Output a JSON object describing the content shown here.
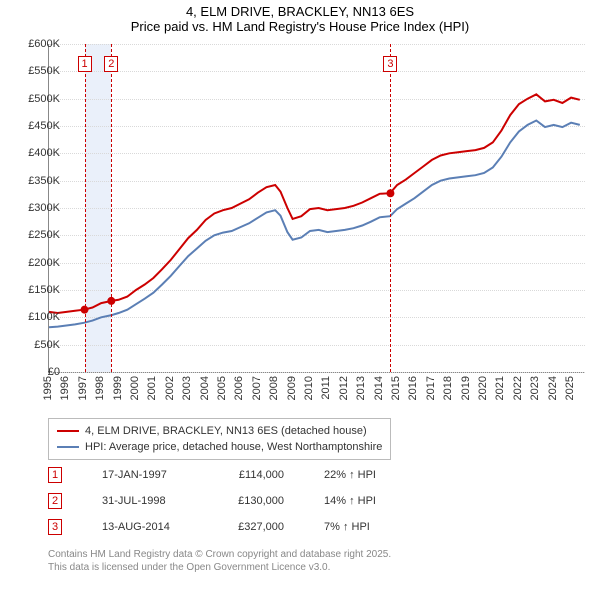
{
  "title": {
    "line1": "4, ELM DRIVE, BRACKLEY, NN13 6ES",
    "line2": "Price paid vs. HM Land Registry's House Price Index (HPI)"
  },
  "chart": {
    "type": "line",
    "x_domain": [
      1995,
      2025.8
    ],
    "y_domain": [
      0,
      600
    ],
    "y_ticks": [
      0,
      50,
      100,
      150,
      200,
      250,
      300,
      350,
      400,
      450,
      500,
      550,
      600
    ],
    "y_tick_labels": [
      "£0",
      "£50K",
      "£100K",
      "£150K",
      "£200K",
      "£250K",
      "£300K",
      "£350K",
      "£400K",
      "£450K",
      "£500K",
      "£550K",
      "£600K"
    ],
    "x_ticks": [
      1995,
      1996,
      1997,
      1998,
      1999,
      2000,
      2001,
      2002,
      2003,
      2004,
      2005,
      2006,
      2007,
      2008,
      2009,
      2010,
      2011,
      2012,
      2013,
      2014,
      2015,
      2016,
      2017,
      2018,
      2019,
      2020,
      2021,
      2022,
      2023,
      2024,
      2025
    ],
    "grid_color": "#d9d9d9",
    "background_color": "#ffffff",
    "band_color": "#eaf0fa",
    "event_line_color": "#cc0000",
    "series": [
      {
        "name": "price_paid",
        "label": "4, ELM DRIVE, BRACKLEY, NN13 6ES (detached house)",
        "color": "#cc0000",
        "width": 2,
        "data": [
          [
            1995,
            110
          ],
          [
            1995.5,
            108
          ],
          [
            1996,
            110
          ],
          [
            1996.5,
            112
          ],
          [
            1997,
            114
          ],
          [
            1997.5,
            118
          ],
          [
            1998,
            126
          ],
          [
            1998.6,
            130
          ],
          [
            1999,
            132
          ],
          [
            1999.5,
            138
          ],
          [
            2000,
            150
          ],
          [
            2000.5,
            160
          ],
          [
            2001,
            172
          ],
          [
            2001.5,
            188
          ],
          [
            2002,
            205
          ],
          [
            2002.5,
            225
          ],
          [
            2003,
            245
          ],
          [
            2003.5,
            260
          ],
          [
            2004,
            278
          ],
          [
            2004.5,
            290
          ],
          [
            2005,
            296
          ],
          [
            2005.5,
            300
          ],
          [
            2006,
            308
          ],
          [
            2006.5,
            316
          ],
          [
            2007,
            328
          ],
          [
            2007.5,
            338
          ],
          [
            2008,
            342
          ],
          [
            2008.3,
            330
          ],
          [
            2008.7,
            300
          ],
          [
            2009,
            280
          ],
          [
            2009.5,
            285
          ],
          [
            2010,
            298
          ],
          [
            2010.5,
            300
          ],
          [
            2011,
            296
          ],
          [
            2011.5,
            298
          ],
          [
            2012,
            300
          ],
          [
            2012.5,
            304
          ],
          [
            2013,
            310
          ],
          [
            2013.5,
            318
          ],
          [
            2014,
            326
          ],
          [
            2014.6,
            327
          ],
          [
            2015,
            342
          ],
          [
            2015.5,
            352
          ],
          [
            2016,
            364
          ],
          [
            2016.5,
            376
          ],
          [
            2017,
            388
          ],
          [
            2017.5,
            396
          ],
          [
            2018,
            400
          ],
          [
            2018.5,
            402
          ],
          [
            2019,
            404
          ],
          [
            2019.5,
            406
          ],
          [
            2020,
            410
          ],
          [
            2020.5,
            420
          ],
          [
            2021,
            442
          ],
          [
            2021.5,
            470
          ],
          [
            2022,
            490
          ],
          [
            2022.5,
            500
          ],
          [
            2023,
            508
          ],
          [
            2023.5,
            495
          ],
          [
            2024,
            498
          ],
          [
            2024.5,
            492
          ],
          [
            2025,
            502
          ],
          [
            2025.5,
            498
          ]
        ]
      },
      {
        "name": "hpi",
        "label": "HPI: Average price, detached house, West Northamptonshire",
        "color": "#5b7fb5",
        "width": 2,
        "data": [
          [
            1995,
            82
          ],
          [
            1995.5,
            83
          ],
          [
            1996,
            85
          ],
          [
            1996.5,
            87
          ],
          [
            1997,
            90
          ],
          [
            1997.5,
            94
          ],
          [
            1998,
            100
          ],
          [
            1998.6,
            104
          ],
          [
            1999,
            108
          ],
          [
            1999.5,
            114
          ],
          [
            2000,
            124
          ],
          [
            2000.5,
            134
          ],
          [
            2001,
            145
          ],
          [
            2001.5,
            160
          ],
          [
            2002,
            176
          ],
          [
            2002.5,
            194
          ],
          [
            2003,
            212
          ],
          [
            2003.5,
            226
          ],
          [
            2004,
            240
          ],
          [
            2004.5,
            250
          ],
          [
            2005,
            255
          ],
          [
            2005.5,
            258
          ],
          [
            2006,
            265
          ],
          [
            2006.5,
            272
          ],
          [
            2007,
            282
          ],
          [
            2007.5,
            292
          ],
          [
            2008,
            296
          ],
          [
            2008.3,
            286
          ],
          [
            2008.7,
            256
          ],
          [
            2009,
            242
          ],
          [
            2009.5,
            246
          ],
          [
            2010,
            258
          ],
          [
            2010.5,
            260
          ],
          [
            2011,
            256
          ],
          [
            2011.5,
            258
          ],
          [
            2012,
            260
          ],
          [
            2012.5,
            263
          ],
          [
            2013,
            268
          ],
          [
            2013.5,
            275
          ],
          [
            2014,
            283
          ],
          [
            2014.6,
            285
          ],
          [
            2015,
            298
          ],
          [
            2015.5,
            308
          ],
          [
            2016,
            318
          ],
          [
            2016.5,
            330
          ],
          [
            2017,
            342
          ],
          [
            2017.5,
            350
          ],
          [
            2018,
            354
          ],
          [
            2018.5,
            356
          ],
          [
            2019,
            358
          ],
          [
            2019.5,
            360
          ],
          [
            2020,
            364
          ],
          [
            2020.5,
            374
          ],
          [
            2021,
            394
          ],
          [
            2021.5,
            420
          ],
          [
            2022,
            440
          ],
          [
            2022.5,
            452
          ],
          [
            2023,
            460
          ],
          [
            2023.5,
            448
          ],
          [
            2024,
            452
          ],
          [
            2024.5,
            448
          ],
          [
            2025,
            456
          ],
          [
            2025.5,
            452
          ]
        ]
      }
    ],
    "event_bands": [
      {
        "from": 1997.04,
        "to": 1998.58
      }
    ],
    "event_lines_x": [
      1997.04,
      1998.58,
      2014.62
    ],
    "event_labels": [
      "1",
      "2",
      "3"
    ],
    "sale_markers": [
      {
        "x": 1997.04,
        "y": 114
      },
      {
        "x": 1998.58,
        "y": 130
      },
      {
        "x": 2014.62,
        "y": 327
      }
    ],
    "title_fontsize": 13,
    "tick_fontsize": 11
  },
  "legend": {
    "items": [
      {
        "color": "#cc0000",
        "label": "4, ELM DRIVE, BRACKLEY, NN13 6ES (detached house)"
      },
      {
        "color": "#5b7fb5",
        "label": "HPI: Average price, detached house, West Northamptonshire"
      }
    ]
  },
  "events_table": [
    {
      "num": "1",
      "date": "17-JAN-1997",
      "price": "£114,000",
      "pct": "22% ↑ HPI"
    },
    {
      "num": "2",
      "date": "31-JUL-1998",
      "price": "£130,000",
      "pct": "14% ↑ HPI"
    },
    {
      "num": "3",
      "date": "13-AUG-2014",
      "price": "£327,000",
      "pct": "7% ↑ HPI"
    }
  ],
  "footer": {
    "line1": "Contains HM Land Registry data © Crown copyright and database right 2025.",
    "line2": "This data is licensed under the Open Government Licence v3.0."
  }
}
